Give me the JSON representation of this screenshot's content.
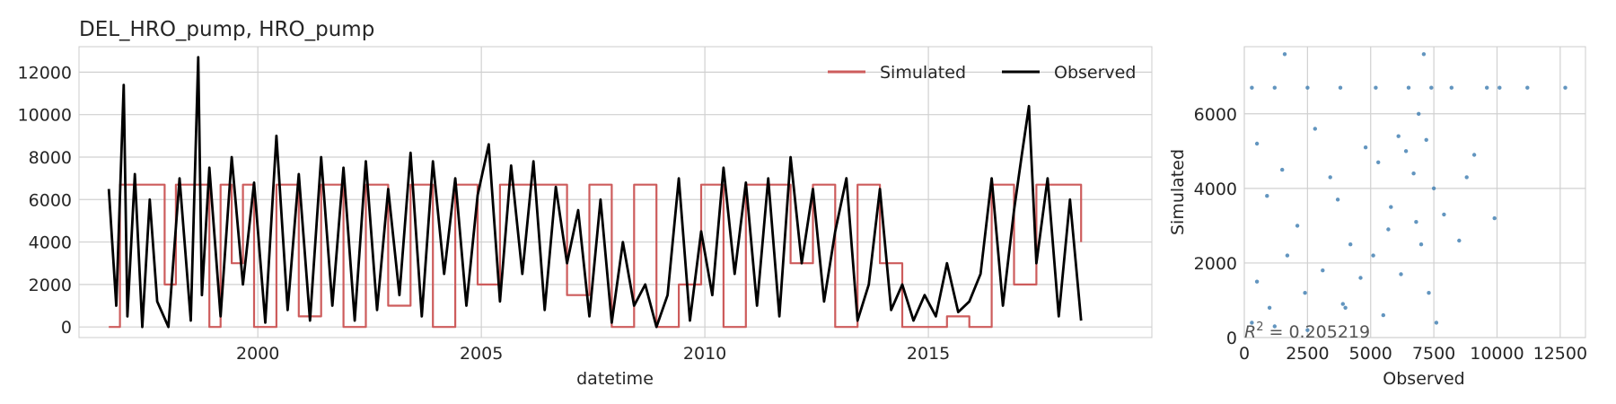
{
  "title": "DEL_HRO_pump, HRO_pump",
  "colors": {
    "simulated": "#cd5c5c",
    "observed": "#000000",
    "scatter": "#4682b4",
    "grid": "#d0d0d0",
    "frame": "#cccccc"
  },
  "chart_data": [
    {
      "type": "line",
      "xlabel": "datetime",
      "ylabel": "",
      "xlim": [
        "1996-01-01",
        "2019-12-31"
      ],
      "ylim": [
        -500,
        13200
      ],
      "x_ticks": [
        "2000",
        "2005",
        "2010",
        "2015"
      ],
      "y_ticks": [
        0,
        2000,
        4000,
        6000,
        8000,
        10000,
        12000
      ],
      "grid": true,
      "legend": "top-right",
      "series": [
        {
          "name": "Simulated",
          "x": [
            "1996-09",
            "1996-12",
            "1997-03",
            "1997-06",
            "1997-09",
            "1997-12",
            "1998-03",
            "1998-06",
            "1998-09",
            "1998-12",
            "1999-03",
            "1999-06",
            "1999-09",
            "1999-12",
            "2000-06",
            "2000-12",
            "2001-06",
            "2001-12",
            "2002-06",
            "2002-12",
            "2003-06",
            "2003-12",
            "2004-06",
            "2004-12",
            "2005-06",
            "2005-12",
            "2006-06",
            "2006-12",
            "2007-06",
            "2007-12",
            "2008-06",
            "2008-12",
            "2009-06",
            "2009-12",
            "2010-06",
            "2010-12",
            "2011-06",
            "2011-12",
            "2012-06",
            "2012-12",
            "2013-06",
            "2013-12",
            "2014-06",
            "2014-12",
            "2015-06",
            "2015-12",
            "2016-06",
            "2016-12",
            "2017-06",
            "2017-12",
            "2018-06"
          ],
          "values": [
            0,
            6700,
            6700,
            6700,
            6700,
            2000,
            6700,
            6700,
            6700,
            0,
            6700,
            3000,
            6700,
            0,
            6700,
            500,
            6700,
            0,
            6700,
            1000,
            6700,
            0,
            6700,
            2000,
            6700,
            6700,
            6700,
            1500,
            6700,
            0,
            6700,
            0,
            2000,
            6700,
            0,
            6700,
            6700,
            3000,
            6700,
            0,
            6700,
            3000,
            0,
            0,
            500,
            0,
            6700,
            2000,
            6700,
            6700,
            4000
          ]
        },
        {
          "name": "Observed",
          "x": [
            "1996-09",
            "1996-11",
            "1997-01",
            "1997-02",
            "1997-04",
            "1997-06",
            "1997-08",
            "1997-10",
            "1998-01",
            "1998-04",
            "1998-07",
            "1998-09",
            "1998-10",
            "1998-12",
            "1999-03",
            "1999-06",
            "1999-09",
            "1999-12",
            "2000-03",
            "2000-06",
            "2000-09",
            "2000-12",
            "2001-03",
            "2001-06",
            "2001-09",
            "2001-12",
            "2002-03",
            "2002-06",
            "2002-09",
            "2002-12",
            "2003-03",
            "2003-06",
            "2003-09",
            "2003-12",
            "2004-03",
            "2004-06",
            "2004-09",
            "2004-12",
            "2005-03",
            "2005-06",
            "2005-09",
            "2005-12",
            "2006-03",
            "2006-06",
            "2006-09",
            "2006-12",
            "2007-03",
            "2007-06",
            "2007-09",
            "2007-12",
            "2008-03",
            "2008-06",
            "2008-09",
            "2008-12",
            "2009-03",
            "2009-06",
            "2009-09",
            "2009-12",
            "2010-03",
            "2010-06",
            "2010-09",
            "2010-12",
            "2011-03",
            "2011-06",
            "2011-09",
            "2011-12",
            "2012-03",
            "2012-06",
            "2012-09",
            "2012-12",
            "2013-03",
            "2013-06",
            "2013-09",
            "2013-12",
            "2014-03",
            "2014-06",
            "2014-09",
            "2014-12",
            "2015-03",
            "2015-06",
            "2015-09",
            "2015-12",
            "2016-03",
            "2016-06",
            "2016-09",
            "2016-12",
            "2017-02",
            "2017-04",
            "2017-06",
            "2017-09",
            "2017-12",
            "2018-03",
            "2018-06"
          ],
          "values": [
            6500,
            1000,
            11400,
            500,
            7200,
            0,
            6000,
            1200,
            0,
            7000,
            300,
            12700,
            1500,
            7500,
            500,
            8000,
            2000,
            6800,
            200,
            9000,
            800,
            7200,
            300,
            8000,
            1000,
            7500,
            300,
            7800,
            800,
            6500,
            1500,
            8200,
            500,
            7800,
            2500,
            7000,
            1000,
            6200,
            8600,
            1200,
            7600,
            2500,
            7800,
            800,
            6600,
            3000,
            5500,
            500,
            6000,
            200,
            4000,
            1000,
            2000,
            0,
            1500,
            7000,
            300,
            4500,
            1500,
            7500,
            2500,
            6800,
            1000,
            7000,
            500,
            8000,
            3000,
            6500,
            1200,
            4500,
            7000,
            300,
            2000,
            6500,
            800,
            2000,
            300,
            1500,
            500,
            3000,
            700,
            1200,
            2500,
            7000,
            1000,
            5500,
            8000,
            10400,
            3000,
            7000,
            500,
            6000,
            300
          ]
        }
      ]
    },
    {
      "type": "scatter",
      "xlabel": "Observed",
      "ylabel": "Simulated",
      "xlim": [
        0,
        13500
      ],
      "ylim": [
        0,
        7800
      ],
      "x_ticks": [
        0,
        2500,
        5000,
        7500,
        10000,
        12500
      ],
      "y_ticks": [
        0,
        2000,
        4000,
        6000
      ],
      "grid": true,
      "points": [
        [
          300,
          6700
        ],
        [
          1200,
          6700
        ],
        [
          2500,
          6700
        ],
        [
          3800,
          6700
        ],
        [
          5200,
          6700
        ],
        [
          6500,
          6700
        ],
        [
          7400,
          6700
        ],
        [
          8200,
          6700
        ],
        [
          9600,
          6700
        ],
        [
          10100,
          6700
        ],
        [
          11200,
          6700
        ],
        [
          12700,
          6700
        ],
        [
          1600,
          7600
        ],
        [
          7100,
          7600
        ],
        [
          500,
          5200
        ],
        [
          900,
          3800
        ],
        [
          1500,
          4500
        ],
        [
          2100,
          3000
        ],
        [
          2800,
          5600
        ],
        [
          3400,
          4300
        ],
        [
          3700,
          3700
        ],
        [
          4200,
          2500
        ],
        [
          4800,
          5100
        ],
        [
          5300,
          4700
        ],
        [
          5800,
          3500
        ],
        [
          6100,
          5400
        ],
        [
          6400,
          5000
        ],
        [
          6700,
          4400
        ],
        [
          6900,
          6000
        ],
        [
          7000,
          2500
        ],
        [
          7200,
          5300
        ],
        [
          7500,
          4000
        ],
        [
          7900,
          3300
        ],
        [
          8500,
          2600
        ],
        [
          8800,
          4300
        ],
        [
          9100,
          4900
        ],
        [
          9900,
          3200
        ],
        [
          500,
          1500
        ],
        [
          1000,
          800
        ],
        [
          1700,
          2200
        ],
        [
          2400,
          1200
        ],
        [
          3100,
          1800
        ],
        [
          3900,
          900
        ],
        [
          4600,
          1600
        ],
        [
          5100,
          2200
        ],
        [
          5700,
          2900
        ],
        [
          6200,
          1700
        ],
        [
          6800,
          3100
        ],
        [
          7300,
          1200
        ],
        [
          7600,
          400
        ],
        [
          300,
          400
        ],
        [
          1200,
          300
        ],
        [
          2500,
          200
        ],
        [
          4000,
          800
        ],
        [
          5500,
          600
        ]
      ],
      "annotation": "R^2 = 0.205219"
    }
  ],
  "legend_items": [
    {
      "label": "Simulated"
    },
    {
      "label": "Observed"
    }
  ],
  "r2_text": "= 0.205219"
}
